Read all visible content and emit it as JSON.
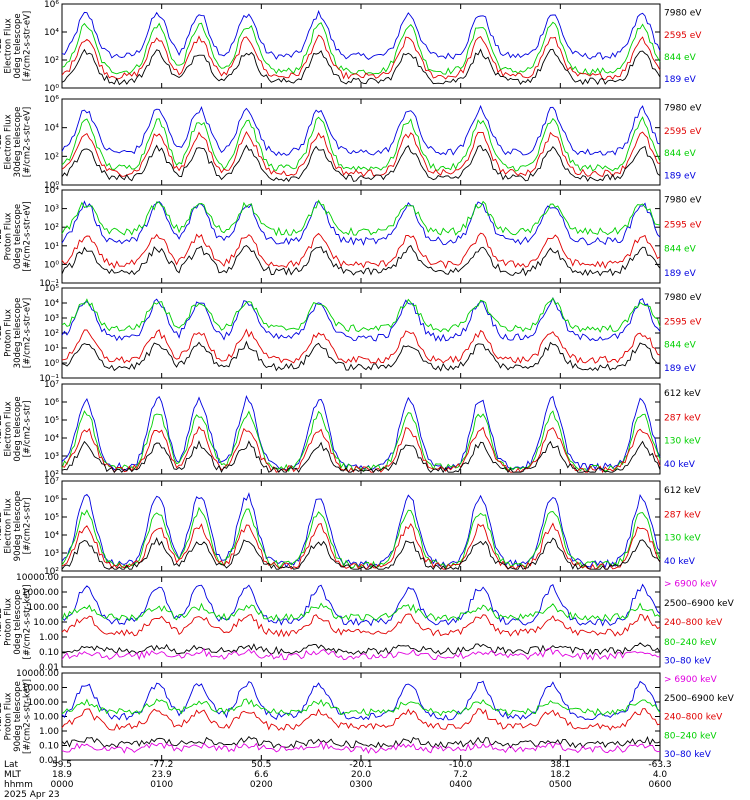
{
  "chart_data": {
    "type": "line",
    "date": "2025 Apr 23",
    "x": {
      "rows": [
        "Lat",
        "MLT",
        "hhmm"
      ],
      "ticks": [
        {
          "lat": "59.5",
          "mlt": "18.9",
          "hhmm": "0000"
        },
        {
          "lat": "-77.2",
          "mlt": "23.9",
          "hhmm": "0100"
        },
        {
          "lat": "50.5",
          "mlt": "6.6",
          "hhmm": "0200"
        },
        {
          "lat": "-20.1",
          "mlt": "20.0",
          "hhmm": "0300"
        },
        {
          "lat": "-10.0",
          "mlt": "7.2",
          "hhmm": "0400"
        },
        {
          "lat": "38.1",
          "mlt": "18.2",
          "hhmm": "0500"
        },
        {
          "lat": "-63.3",
          "mlt": "4.0",
          "hhmm": "0600"
        }
      ]
    },
    "panels": [
      {
        "id": "ted-electron-0deg",
        "ylabel": [
          "TED",
          "Electron Flux",
          "0deg telescope",
          "[#/cm2-s-str-eV]"
        ],
        "yscale": "log",
        "ylim": [
          1,
          1000000
        ],
        "ytick_labels": [
          "10⁰",
          "10²",
          "10⁴",
          "10⁶"
        ],
        "series": [
          {
            "name": "7980 eV",
            "color": "#000000"
          },
          {
            "name": "2595 eV",
            "color": "#e00000"
          },
          {
            "name": "844 eV",
            "color": "#00d000"
          },
          {
            "name": "189 eV",
            "color": "#0000e0"
          }
        ]
      },
      {
        "id": "ted-electron-30deg",
        "ylabel": [
          "TED",
          "Electron Flux",
          "30deg telescope",
          "[#/cm2-s-str-eV]"
        ],
        "yscale": "log",
        "ylim": [
          1,
          1000000
        ],
        "ytick_labels": [
          "10⁰",
          "10²",
          "10⁴",
          "10⁶"
        ],
        "series": [
          {
            "name": "7980 eV",
            "color": "#000000"
          },
          {
            "name": "2595 eV",
            "color": "#e00000"
          },
          {
            "name": "844 eV",
            "color": "#00d000"
          },
          {
            "name": "189 eV",
            "color": "#0000e0"
          }
        ]
      },
      {
        "id": "ted-proton-0deg",
        "ylabel": [
          "TED",
          "Proton Flux",
          "0deg telescope",
          "[#/cm2-s-str-eV]"
        ],
        "yscale": "log",
        "ylim": [
          0.1,
          10000
        ],
        "ytick_labels": [
          "10⁻¹",
          "10⁰",
          "10¹",
          "10²",
          "10³",
          "10⁴"
        ],
        "series": [
          {
            "name": "7980 eV",
            "color": "#000000"
          },
          {
            "name": "2595 eV",
            "color": "#e00000"
          },
          {
            "name": "844 eV",
            "color": "#00d000"
          },
          {
            "name": "189 eV",
            "color": "#0000e0"
          }
        ]
      },
      {
        "id": "ted-proton-30deg",
        "ylabel": [
          "TED",
          "Proton Flux",
          "30deg telescope",
          "[#/cm2-s-str-eV]"
        ],
        "yscale": "log",
        "ylim": [
          0.1,
          100000
        ],
        "ytick_labels": [
          "10⁻¹",
          "10⁰",
          "10¹",
          "10²",
          "10³",
          "10⁴",
          "10⁵"
        ],
        "series": [
          {
            "name": "7980 eV",
            "color": "#000000"
          },
          {
            "name": "2595 eV",
            "color": "#e00000"
          },
          {
            "name": "844 eV",
            "color": "#00d000"
          },
          {
            "name": "189 eV",
            "color": "#0000e0"
          }
        ]
      },
      {
        "id": "meped-electron-0deg",
        "ylabel": [
          "MEPED",
          "Electron Flux",
          "0deg telescope",
          "[#/cm2-s-str]"
        ],
        "yscale": "log",
        "ylim": [
          100,
          10000000
        ],
        "ytick_labels": [
          "10²",
          "10³",
          "10⁴",
          "10⁵",
          "10⁶",
          "10⁷"
        ],
        "series": [
          {
            "name": "612 keV",
            "color": "#000000"
          },
          {
            "name": "287 keV",
            "color": "#e00000"
          },
          {
            "name": "130 keV",
            "color": "#00d000"
          },
          {
            "name": "40 keV",
            "color": "#0000e0"
          }
        ]
      },
      {
        "id": "meped-electron-90deg",
        "ylabel": [
          "MEPED",
          "Electron Flux",
          "90deg telescope",
          "[#/cm2-s-str]"
        ],
        "yscale": "log",
        "ylim": [
          100,
          10000000
        ],
        "ytick_labels": [
          "10²",
          "10³",
          "10⁴",
          "10⁵",
          "10⁶",
          "10⁷"
        ],
        "series": [
          {
            "name": "612 keV",
            "color": "#000000"
          },
          {
            "name": "287 keV",
            "color": "#e00000"
          },
          {
            "name": "130 keV",
            "color": "#00d000"
          },
          {
            "name": "40 keV",
            "color": "#0000e0"
          }
        ]
      },
      {
        "id": "meped-proton-0deg",
        "ylabel": [
          "MEPED",
          "Proton Flux",
          "0deg telescope",
          "[#/cm2-s-str-keV]"
        ],
        "yscale": "log",
        "ylim": [
          0.01,
          10000
        ],
        "ytick_labels": [
          "0.01",
          "0.10",
          "1.00",
          "10.00",
          "100.00",
          "1000.00",
          "10000.00"
        ],
        "series": [
          {
            "name": "> 6900 keV",
            "color": "#e000e0"
          },
          {
            "name": "2500–6900 keV",
            "color": "#000000"
          },
          {
            "name": "240–800 keV",
            "color": "#e00000"
          },
          {
            "name": "80–240 keV",
            "color": "#00d000"
          },
          {
            "name": "30–80 keV",
            "color": "#0000e0"
          }
        ]
      },
      {
        "id": "meped-proton-90deg",
        "ylabel": [
          "MEPED",
          "Proton Flux",
          "90deg telescope",
          "[#/cm2-s-str-keV]"
        ],
        "yscale": "log",
        "ylim": [
          0.01,
          10000
        ],
        "ytick_labels": [
          "0.01",
          "0.10",
          "1.00",
          "10.00",
          "100.00",
          "1000.00",
          "10000.00"
        ],
        "series": [
          {
            "name": "> 6900 keV",
            "color": "#e000e0"
          },
          {
            "name": "2500–6900 keV",
            "color": "#000000"
          },
          {
            "name": "240–800 keV",
            "color": "#e00000"
          },
          {
            "name": "80–240 keV",
            "color": "#00d000"
          },
          {
            "name": "30–80 keV",
            "color": "#0000e0"
          }
        ]
      }
    ]
  }
}
